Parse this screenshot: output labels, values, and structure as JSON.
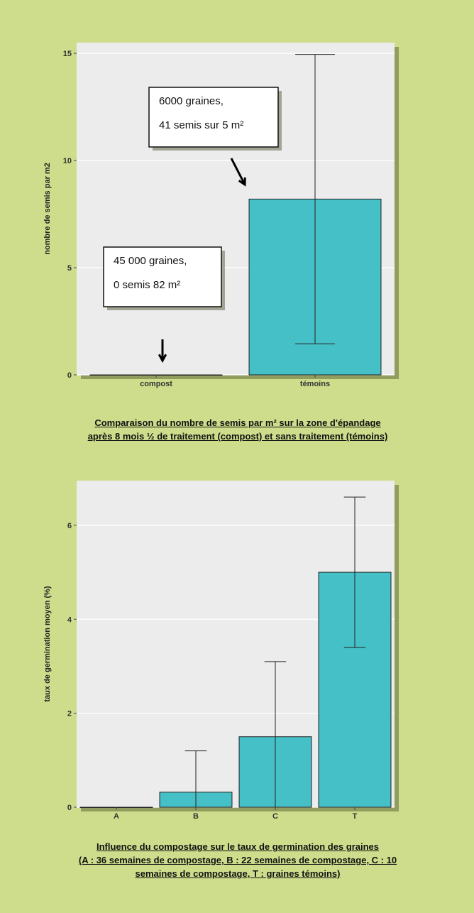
{
  "colors": {
    "background": "#cedd8c",
    "panel": "#ececec",
    "bar": "#45c0c6",
    "bar_stroke": "#222222"
  },
  "chart_data": [
    {
      "type": "bar",
      "categories": [
        "compost",
        "témoins"
      ],
      "values": [
        0,
        8.2
      ],
      "error_low": [
        0,
        1.45
      ],
      "error_high": [
        0,
        14.95
      ],
      "ylabel": "nombre de semis par m2",
      "ylim": [
        0,
        15.5
      ],
      "yticks": [
        0,
        5,
        10,
        15
      ],
      "grid": true,
      "annotations": [
        {
          "target": "témoins",
          "lines": [
            "6000 graines,",
            "41 semis sur 5 m²"
          ]
        },
        {
          "target": "compost",
          "lines": [
            "45 000 graines,",
            "0 semis 82 m²"
          ]
        }
      ],
      "caption": [
        "Comparaison du nombre de semis par m² sur la zone d'épandage",
        "après 8 mois ½ de traitement (compost) et sans traitement (témoins)"
      ]
    },
    {
      "type": "bar",
      "categories": [
        "A",
        "B",
        "C",
        "T"
      ],
      "values": [
        0,
        0.32,
        1.5,
        5.0
      ],
      "error_low": [
        0,
        0,
        0,
        3.4
      ],
      "error_high": [
        0,
        1.2,
        3.1,
        6.6
      ],
      "ylabel": "taux de germination moyen (%)",
      "ylim": [
        0,
        6.95
      ],
      "yticks": [
        0,
        2,
        4,
        6
      ],
      "grid": true,
      "caption": [
        "Influence du compostage sur le taux de germination des graines",
        "(A : 36 semaines de compostage, B : 22 semaines de compostage, C : 10",
        "semaines de compostage, T : graines témoins)"
      ]
    }
  ]
}
